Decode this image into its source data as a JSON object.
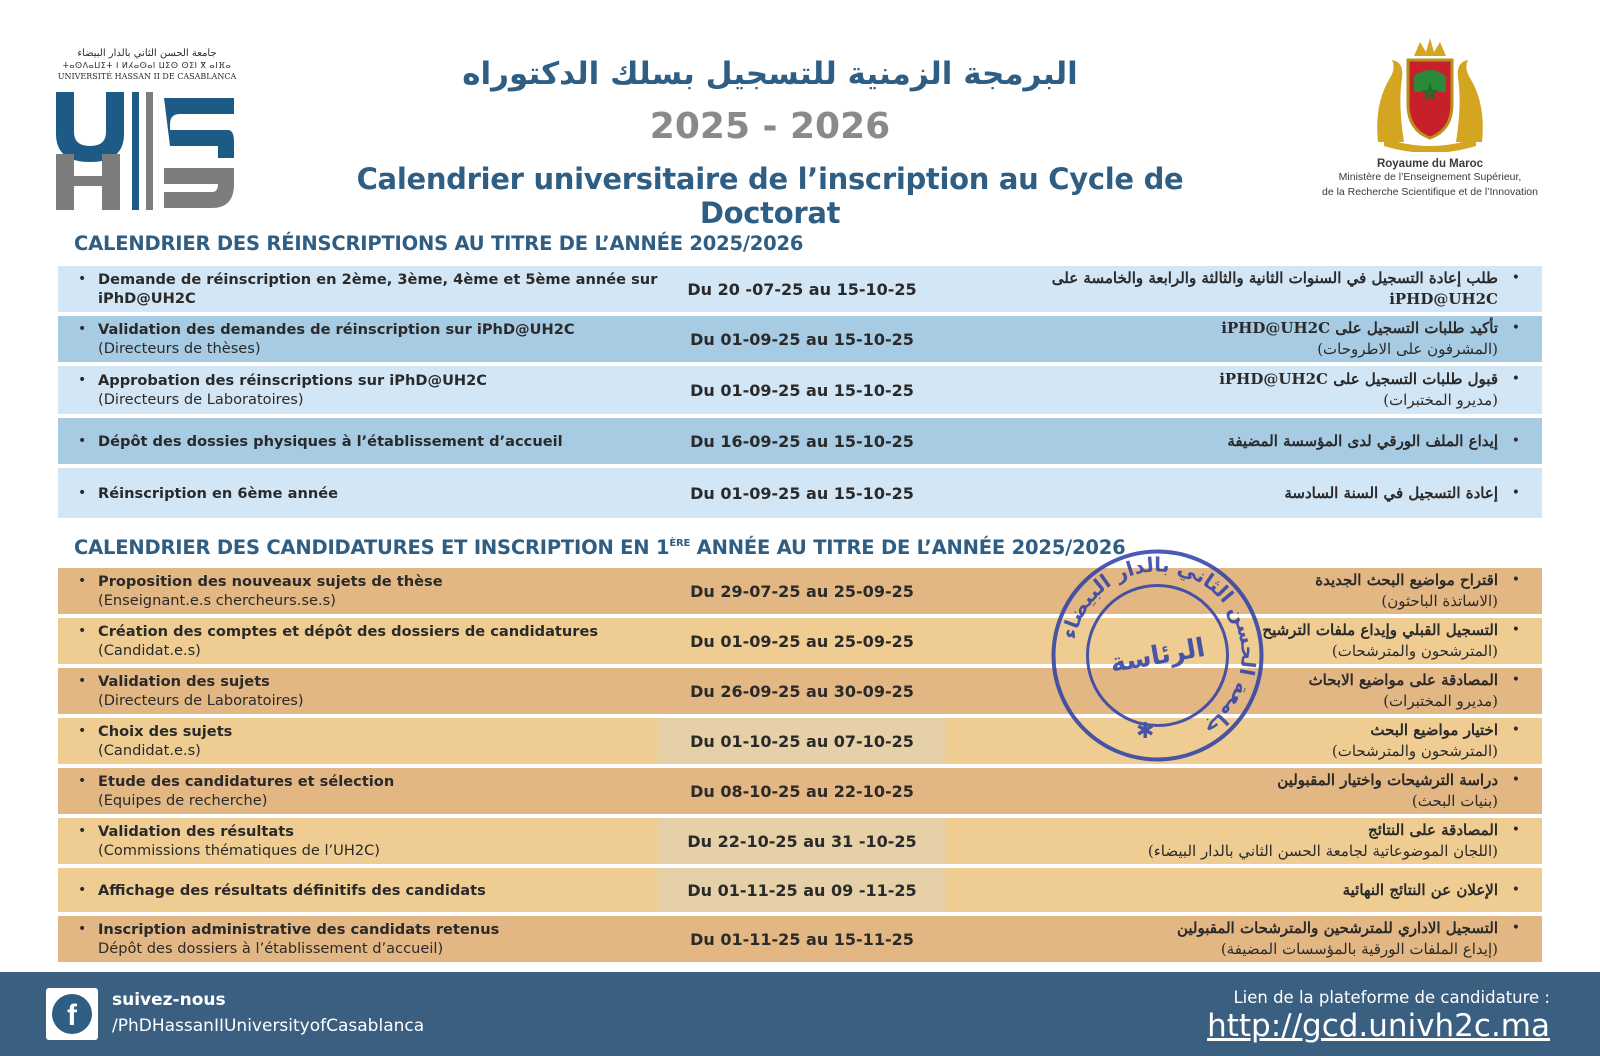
{
  "header": {
    "university_ar": "جامعة الحسن الثاني بالدار البيضاء",
    "university_tf": "ⵜⴰⵙⴷⴰⵡⵉⵜ ⵏ ⵍⵃⴰⵙⴰⵏ ⵡⵉⵙ ⵙⵉⵏ ⴳ ⴰⵏⴼⴰ",
    "university_fr": "UNIVERSITÉ HASSAN II DE CASABLANCA",
    "title_ar": "البرمجة الزمنية للتسجيل بسلك الدكتوراه",
    "year": "2025 - 2026",
    "title_fr": "Calendrier universitaire de l’inscription au Cycle de Doctorat",
    "kingdom": "Royaume du Maroc",
    "ministry_line1": "Ministère de l’Enseignement Supérieur,",
    "ministry_line2": "de la Recherche Scientifique et de l’Innovation"
  },
  "reinscriptions": {
    "title": "CALENDRIER DES RÉINSCRIPTIONS AU TITRE DE L’ANNÉE 2025/2026",
    "rows": [
      {
        "fr_bold": "Demande de réinscription en 2ème, 3ème, 4ème et 5ème année sur iPhD@UH2C",
        "fr_sub": "",
        "date": "Du 20 -07-25 au 15-10-25",
        "ar_bold": "طلب إعادة التسجيل في السنوات الثانية والثالثة والرابعة والخامسة على iPHD@UH2C",
        "ar_sub": ""
      },
      {
        "fr_bold": "Validation des demandes de réinscription sur iPhD@UH2C",
        "fr_sub": "(Directeurs de thèses)",
        "date": "Du 01-09-25 au 15-10-25",
        "ar_bold": "تأكيد طلبات التسجيل على iPHD@UH2C",
        "ar_sub": "(المشرفون على الاطروحات)"
      },
      {
        "fr_bold": "Approbation des réinscriptions sur iPhD@UH2C",
        "fr_sub": "(Directeurs de Laboratoires)",
        "date": "Du 01-09-25 au 15-10-25",
        "ar_bold": "قبول طلبات التسجيل على iPHD@UH2C",
        "ar_sub": "(مديرو المختبرات)"
      },
      {
        "fr_bold": "Dépôt des dossies physiques à l’établissement d’accueil",
        "fr_sub": "",
        "date": "Du 16-09-25 au 15-10-25",
        "ar_bold": "إيداع الملف الورقي لدى المؤسسة المضيفة",
        "ar_sub": ""
      },
      {
        "fr_bold": "Réinscription en 6ème année",
        "fr_sub": "",
        "date": "Du 01-09-25 au 15-10-25",
        "ar_bold": "إعادة التسجيل في السنة السادسة",
        "ar_sub": ""
      }
    ]
  },
  "candidatures": {
    "title_part1": "CALENDRIER DES CANDIDATURES ET INSCRIPTION EN 1",
    "title_sup": "ÈRE",
    "title_part2": " ANNÉE AU TITRE DE L’ANNÉE 2025/2026",
    "rows": [
      {
        "fr_bold": "Proposition des nouveaux sujets de thèse",
        "fr_sub": "(Enseignant.e.s chercheurs.se.s)",
        "date": "Du 29-07-25 au 25-09-25",
        "ar_bold": "اقتراح مواضيع البحث الجديدة",
        "ar_sub": "(الاساتذة الباحثون)"
      },
      {
        "fr_bold": "Création des comptes et dépôt des dossiers de candidatures",
        "fr_sub": "(Candidat.e.s)",
        "date": "Du 01-09-25 au 25-09-25",
        "ar_bold": "التسجيل القبلي وإيداع ملفات الترشيح",
        "ar_sub": "(المترشحون والمترشحات)"
      },
      {
        "fr_bold": "Validation des sujets",
        "fr_sub": "(Directeurs de Laboratoires)",
        "date": "Du 26-09-25 au 30-09-25",
        "ar_bold": "المصادقة على مواضيع الابحاث",
        "ar_sub": "(مديرو المختبرات)"
      },
      {
        "fr_bold": "Choix des sujets",
        "fr_sub": "(Candidat.e.s)",
        "date": "Du 01-10-25 au 07-10-25",
        "ar_bold": "اختيار مواضيع البحث",
        "ar_sub": "(المترشحون والمترشحات)"
      },
      {
        "fr_bold": "Etude des candidatures et sélection",
        "fr_sub": "(Equipes de recherche)",
        "date": "Du 08-10-25 au 22-10-25",
        "ar_bold": "دراسة الترشيحات واختيار المقبولين",
        "ar_sub": "(بنيات البحث)"
      },
      {
        "fr_bold": "Validation des résultats",
        "fr_sub": "(Commissions thématiques de l’UH2C)",
        "date": "Du 22-10-25 au 31 -10-25",
        "ar_bold": "المصادقة على النتائج",
        "ar_sub": "(اللجان الموضوعاتية لجامعة الحسن الثاني بالدار البيضاء)"
      },
      {
        "fr_bold": "Affichage des résultats définitifs des candidats",
        "fr_sub": "",
        "date": "Du 01-11-25 au 09 -11-25",
        "ar_bold": "الإعلان عن النتائج النهائية",
        "ar_sub": ""
      },
      {
        "fr_bold": "Inscription administrative des candidats retenus",
        "fr_sub": "Dépôt des dossiers à l’établissement d’accueil)",
        "date": "Du 01-11-25 au 15-11-25",
        "ar_bold": "التسجيل الاداري للمترشحين والمترشحات المقبولين",
        "ar_sub": "(إيداع الملفات الورقية بالمؤسسات المضيفة)"
      }
    ]
  },
  "stamp": {
    "outer_text": "جامعة الحسن الثاني بالدار البيضاء",
    "center_text": "الرئاسة"
  },
  "footer": {
    "follow_label": "suivez-nous",
    "facebook_handle": "/PhDHassanIIUniversityofCasablanca",
    "link_label": "Lien de la plateforme de candidature :",
    "link_url": "http://gcd.univh2c.ma"
  },
  "colors": {
    "brand_blue": "#2f5e85",
    "row_light_blue": "#d3e6f5",
    "row_mid_blue": "#a6cbe3",
    "row_tan_dark": "#e3b783",
    "row_tan_light": "#efcc92",
    "footer_bg": "#3a5f80",
    "stamp_blue": "#2b3fa8"
  }
}
